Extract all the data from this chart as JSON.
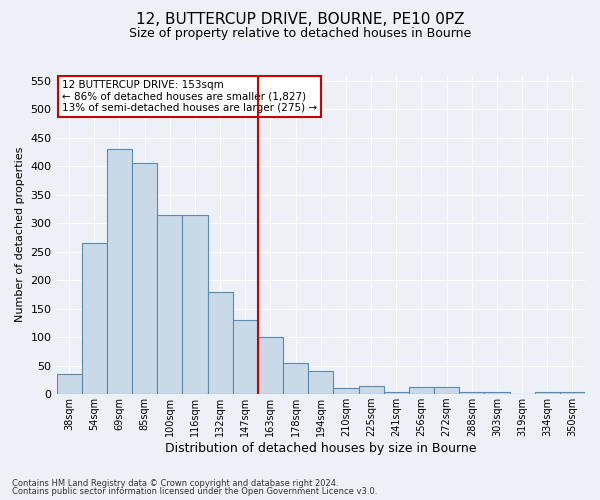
{
  "title_line1": "12, BUTTERCUP DRIVE, BOURNE, PE10 0PZ",
  "title_line2": "Size of property relative to detached houses in Bourne",
  "xlabel": "Distribution of detached houses by size in Bourne",
  "ylabel": "Number of detached properties",
  "bar_labels": [
    "38sqm",
    "54sqm",
    "69sqm",
    "85sqm",
    "100sqm",
    "116sqm",
    "132sqm",
    "147sqm",
    "163sqm",
    "178sqm",
    "194sqm",
    "210sqm",
    "225sqm",
    "241sqm",
    "256sqm",
    "272sqm",
    "288sqm",
    "303sqm",
    "319sqm",
    "334sqm",
    "350sqm"
  ],
  "bar_values": [
    35,
    265,
    430,
    405,
    315,
    315,
    180,
    130,
    100,
    55,
    40,
    10,
    15,
    4,
    13,
    13,
    4,
    4,
    1,
    4,
    4
  ],
  "bar_color": "#c9d9e8",
  "bar_edge_color": "#5a8ab0",
  "vline_color": "#cc0000",
  "annotation_box_text": "12 BUTTERCUP DRIVE: 153sqm\n← 86% of detached houses are smaller (1,827)\n13% of semi-detached houses are larger (275) →",
  "ylim": [
    0,
    560
  ],
  "yticks": [
    0,
    50,
    100,
    150,
    200,
    250,
    300,
    350,
    400,
    450,
    500,
    550
  ],
  "footer_line1": "Contains HM Land Registry data © Crown copyright and database right 2024.",
  "footer_line2": "Contains public sector information licensed under the Open Government Licence v3.0.",
  "background_color": "#edf1f7",
  "grid_color": "#ffffff"
}
